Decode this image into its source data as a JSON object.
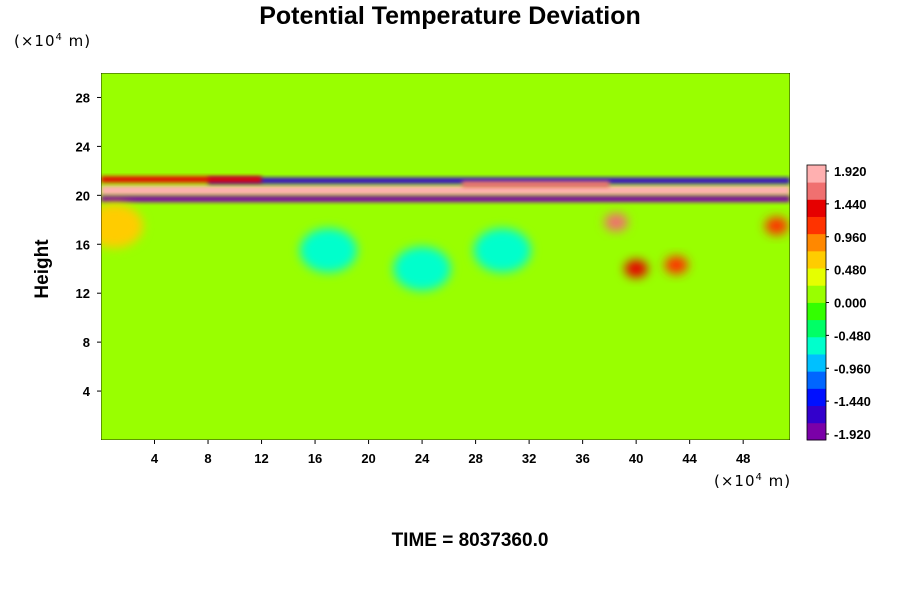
{
  "chart_data": {
    "type": "heatmap",
    "title": "Potential Temperature Deviation",
    "ylabel": "Height",
    "xlabel": "",
    "x_unit": {
      "prefix": "(×10",
      "exp": "4",
      "suffix": " m)"
    },
    "y_unit": {
      "prefix": "(×10",
      "exp": "4",
      "suffix": " m)"
    },
    "time_label": "TIME = 8037360.0",
    "xlim": [
      0,
      51.5
    ],
    "ylim": [
      0,
      30
    ],
    "x_ticks": [
      "4",
      "8",
      "12",
      "16",
      "20",
      "24",
      "28",
      "32",
      "36",
      "40",
      "44",
      "48"
    ],
    "y_ticks": [
      "4",
      "8",
      "12",
      "16",
      "20",
      "24",
      "28"
    ],
    "colorbar": {
      "range": [
        -1.92,
        1.92
      ],
      "tick_labels": [
        "1.920",
        "1.440",
        "0.960",
        "0.480",
        "0.000",
        "-0.480",
        "-0.960",
        "-1.440",
        "-1.920"
      ],
      "colors": [
        "#7a00a8",
        "#3300cc",
        "#0010ff",
        "#0066ff",
        "#00c0ff",
        "#00ffcc",
        "#00ff66",
        "#33ff00",
        "#99ff00",
        "#e6ff00",
        "#ffcc00",
        "#ff8800",
        "#ff3300",
        "#e60000",
        "#f07070",
        "#ffb0b0"
      ]
    },
    "background_value": 0.1,
    "features": [
      {
        "desc": "warm band",
        "x0": 0,
        "x1": 51.5,
        "y": 20.4,
        "h": 0.8,
        "value": 1.9
      },
      {
        "desc": "cold band lower",
        "x0": 0,
        "x1": 51.5,
        "y": 19.7,
        "h": 0.5,
        "value": -1.7
      },
      {
        "desc": "cold band upper",
        "x0": 8,
        "x1": 51.5,
        "y": 21.2,
        "h": 0.5,
        "value": -1.5
      },
      {
        "desc": "warm streak upper",
        "x0": 0,
        "x1": 12,
        "y": 21.3,
        "h": 0.5,
        "value": 1.4
      },
      {
        "desc": "warm streak 28-38",
        "x0": 27,
        "x1": 38,
        "y": 20.9,
        "h": 0.5,
        "value": 1.6
      },
      {
        "desc": "warm blob",
        "x": 38.5,
        "y": 17.8,
        "value": 1.5
      },
      {
        "desc": "warm blob",
        "x": 40.0,
        "y": 14.0,
        "value": 1.3
      },
      {
        "desc": "warm blob",
        "x": 43.0,
        "y": 14.3,
        "value": 1.1
      },
      {
        "desc": "warm blob",
        "x": 50.5,
        "y": 17.5,
        "value": 1.1
      },
      {
        "desc": "warm blob",
        "x": 1.0,
        "y": 17.5,
        "value": 0.7
      },
      {
        "desc": "cool patch",
        "x": 17,
        "y": 15.5,
        "value": -0.5
      },
      {
        "desc": "cool patch",
        "x": 30,
        "y": 15.5,
        "value": -0.6
      },
      {
        "desc": "cool patch",
        "x": 24,
        "y": 14.0,
        "value": -0.5
      }
    ]
  }
}
